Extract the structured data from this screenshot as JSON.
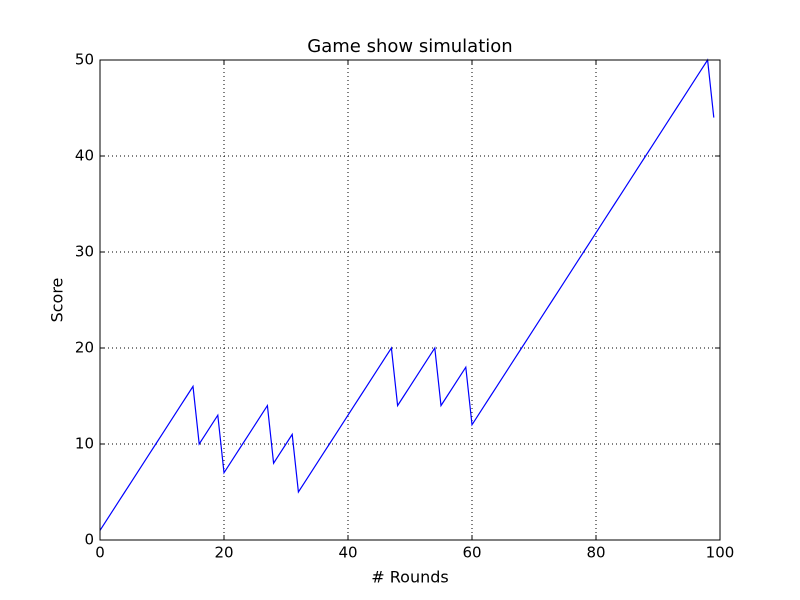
{
  "chart_data": {
    "type": "line",
    "title": "Game show simulation",
    "xlabel": "# Rounds",
    "ylabel": "Score",
    "x": [
      0,
      1,
      2,
      3,
      4,
      5,
      6,
      7,
      8,
      9,
      10,
      11,
      12,
      13,
      14,
      15,
      16,
      17,
      18,
      19,
      20,
      21,
      22,
      23,
      24,
      25,
      26,
      27,
      28,
      29,
      30,
      31,
      32,
      33,
      34,
      35,
      36,
      37,
      38,
      39,
      40,
      41,
      42,
      43,
      44,
      45,
      46,
      47,
      48,
      49,
      50,
      51,
      52,
      53,
      54,
      55,
      56,
      57,
      58,
      59,
      60,
      61,
      62,
      63,
      64,
      65,
      66,
      67,
      68,
      69,
      70,
      71,
      72,
      73,
      74,
      75,
      76,
      77,
      78,
      79,
      80,
      81,
      82,
      83,
      84,
      85,
      86,
      87,
      88,
      89,
      90,
      91,
      92,
      93,
      94,
      95,
      96,
      97,
      98,
      99
    ],
    "values": [
      1,
      2,
      3,
      4,
      5,
      6,
      7,
      8,
      9,
      10,
      11,
      12,
      13,
      14,
      15,
      16,
      10,
      11,
      12,
      13,
      7,
      8,
      9,
      10,
      11,
      12,
      13,
      14,
      8,
      9,
      10,
      11,
      5,
      6,
      7,
      8,
      9,
      10,
      11,
      12,
      13,
      14,
      15,
      16,
      17,
      18,
      19,
      20,
      14,
      15,
      16,
      17,
      18,
      19,
      20,
      14,
      15,
      16,
      17,
      18,
      12,
      13,
      14,
      15,
      16,
      17,
      18,
      19,
      20,
      21,
      22,
      23,
      24,
      25,
      26,
      27,
      28,
      29,
      30,
      31,
      32,
      33,
      34,
      35,
      36,
      37,
      38,
      39,
      40,
      41,
      42,
      43,
      44,
      45,
      46,
      47,
      48,
      49,
      50,
      44
    ],
    "color": "#0000ff",
    "xlim": [
      0,
      100
    ],
    "ylim": [
      0,
      50
    ],
    "xticks": [
      0,
      20,
      40,
      60,
      80,
      100
    ],
    "yticks": [
      0,
      10,
      20,
      30,
      40,
      50
    ],
    "grid": true
  }
}
